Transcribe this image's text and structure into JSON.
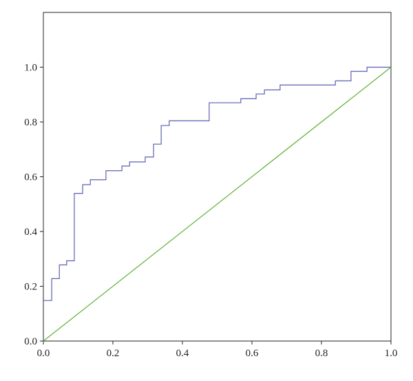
{
  "chart_data": {
    "type": "line",
    "series": [
      {
        "color": "#5a5fb0",
        "x": [
          0,
          0.024,
          0.024,
          0.046,
          0.046,
          0.067,
          0.067,
          0.089,
          0.089,
          0.113,
          0.113,
          0.135,
          0.135,
          0.18,
          0.18,
          0.226,
          0.226,
          0.248,
          0.248,
          0.293,
          0.293,
          0.317,
          0.317,
          0.339,
          0.339,
          0.362,
          0.362,
          0.477,
          0.477,
          0.568,
          0.568,
          0.612,
          0.612,
          0.636,
          0.636,
          0.681,
          0.681,
          0.84,
          0.84,
          0.885,
          0.885,
          0.931,
          0.931,
          1.0
        ],
        "values": [
          0.148,
          0.148,
          0.228,
          0.228,
          0.278,
          0.278,
          0.293,
          0.293,
          0.539,
          0.539,
          0.571,
          0.571,
          0.589,
          0.589,
          0.622,
          0.622,
          0.639,
          0.639,
          0.654,
          0.654,
          0.672,
          0.672,
          0.719,
          0.719,
          0.787,
          0.787,
          0.804,
          0.804,
          0.87,
          0.87,
          0.885,
          0.885,
          0.902,
          0.902,
          0.917,
          0.917,
          0.935,
          0.935,
          0.95,
          0.95,
          0.985,
          0.985,
          1.0,
          1.0
        ]
      },
      {
        "color": "#5cb035",
        "x": [
          0,
          1.0
        ],
        "values": [
          0,
          1.0
        ]
      }
    ],
    "xlim": [
      0,
      1
    ],
    "ylim": [
      0,
      1.2
    ],
    "xticks": [
      {
        "value": 0,
        "label": "0.0"
      },
      0.2,
      0.4,
      0.6,
      0.8,
      {
        "value": 1,
        "label": "1.0"
      }
    ],
    "yticks": [
      {
        "value": 0,
        "label": "0.0"
      },
      0.2,
      0.4,
      0.6,
      0.8,
      {
        "value": 1,
        "label": "1.0"
      }
    ]
  }
}
